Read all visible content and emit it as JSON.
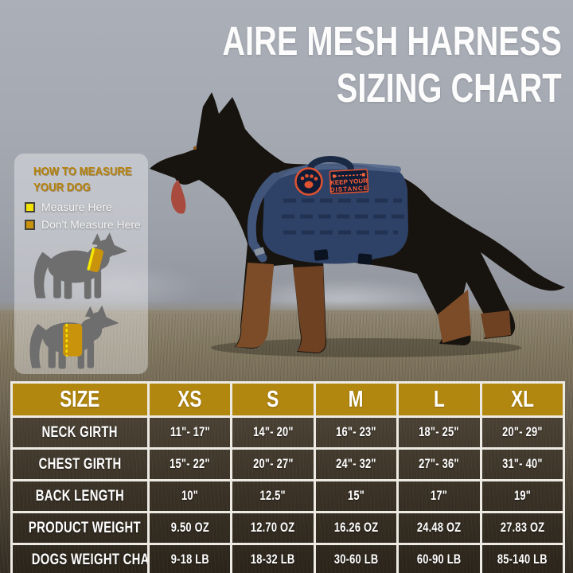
{
  "title": {
    "line1": "AIRE MESH HARNESS",
    "line2": "SIZING CHART"
  },
  "legend": {
    "heading_line1": "HOW TO MEASURE",
    "heading_line2": "YOUR DOG",
    "items": [
      {
        "label": "Measure Here",
        "color": "#f2e400"
      },
      {
        "label": "Don't Measure Here",
        "color": "#c9930c"
      }
    ],
    "figures": [
      {
        "icon": "dog-silhouette-neck-measure"
      },
      {
        "icon": "dog-silhouette-chest-measure"
      }
    ]
  },
  "harness": {
    "patch_line1": "KEEP YOUR",
    "patch_line2": "DISTANCE",
    "round_patch_icon": "no-touch-paw-patch",
    "color": "#2e4166"
  },
  "chart_data": {
    "type": "table",
    "title": "AIRE MESH HARNESS SIZING CHART",
    "columns": [
      "SIZE",
      "XS",
      "S",
      "M",
      "L",
      "XL"
    ],
    "rows": [
      {
        "label": "NECK GIRTH",
        "values": [
          "11\"- 17\"",
          "14\"- 20\"",
          "16\"- 23\"",
          "18\"- 25\"",
          "20\"- 29\""
        ]
      },
      {
        "label": "CHEST GIRTH",
        "values": [
          "15\"- 22\"",
          "20\"- 27\"",
          "24\"- 32\"",
          "27\"- 36\"",
          "31\"- 40\""
        ]
      },
      {
        "label": "BACK LENGTH",
        "values": [
          "10\"",
          "12.5\"",
          "15\"",
          "17\"",
          "19\""
        ]
      },
      {
        "label": "PRODUCT WEIGHT",
        "values": [
          "9.50 OZ",
          "12.70 OZ",
          "16.26 OZ",
          "24.48 OZ",
          "27.83 OZ"
        ]
      },
      {
        "label": "DOGS WEIGHT CHART",
        "values": [
          "9-18 LB",
          "18-32 LB",
          "30-60 LB",
          "60-90 LB",
          "85-140 LB"
        ]
      }
    ]
  },
  "colors": {
    "header_gold": "#b1870f",
    "legend_yellow": "#f2e400",
    "legend_orange": "#c9930c",
    "patch_orange": "#e0532e",
    "harness_navy": "#2e4166"
  }
}
